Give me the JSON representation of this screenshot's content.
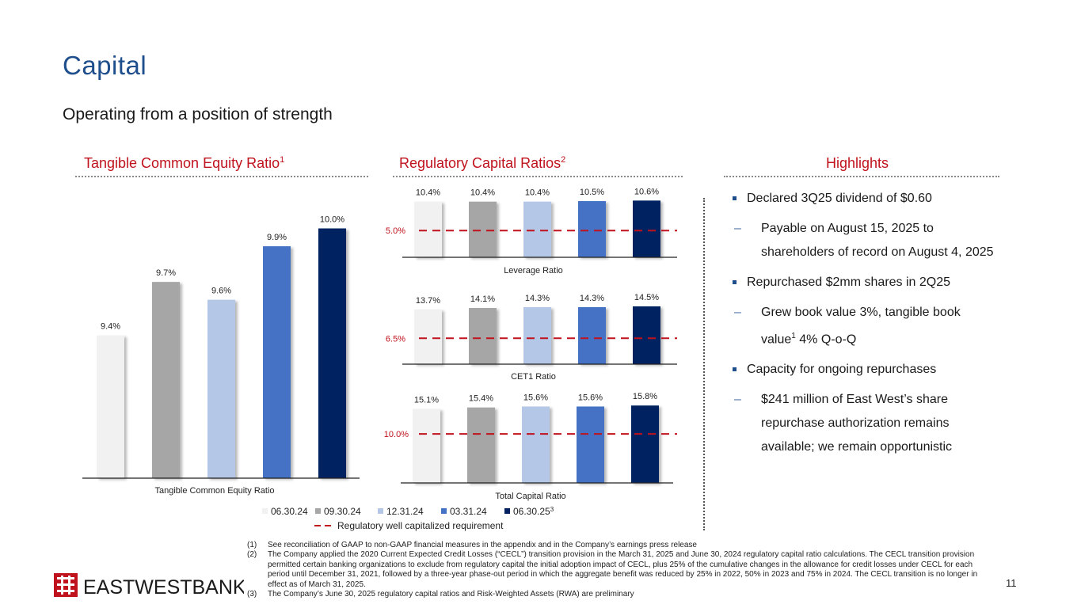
{
  "page": {
    "title": "Capital",
    "subtitle": "Operating from a position of strength",
    "page_number": "11"
  },
  "sections": {
    "tce_title": "Tangible Common Equity Ratio",
    "tce_sup": "1",
    "reg_title": "Regulatory Capital Ratios",
    "reg_sup": "2",
    "highlights_title": "Highlights"
  },
  "colors": {
    "title": "#1f4e8c",
    "section_heading": "#c0121d",
    "requirement_line": "#c0121d",
    "series": [
      "#f1f1f1",
      "#a6a6a6",
      "#b4c7e7",
      "#4472c4",
      "#002060"
    ]
  },
  "chart_data": [
    {
      "type": "bar",
      "xlabel": "Tangible Common Equity Ratio",
      "categories": [
        "06.30.24",
        "09.30.24",
        "12.31.24",
        "03.31.24",
        "06.30.25"
      ],
      "values": [
        9.4,
        9.7,
        9.6,
        9.9,
        10.0
      ],
      "labels": [
        "9.4%",
        "9.7%",
        "9.6%",
        "9.9%",
        "10.0%"
      ],
      "ylim": [
        8.6,
        10.1
      ]
    },
    {
      "type": "bar",
      "xlabel": "Leverage Ratio",
      "categories": [
        "06.30.24",
        "09.30.24",
        "12.31.24",
        "03.31.24",
        "06.30.25"
      ],
      "values": [
        10.4,
        10.4,
        10.4,
        10.5,
        10.6
      ],
      "labels": [
        "10.4%",
        "10.4%",
        "10.4%",
        "10.5%",
        "10.6%"
      ],
      "requirement": 5.0,
      "requirement_label": "5.0%",
      "ylim": [
        0,
        10.8
      ]
    },
    {
      "type": "bar",
      "xlabel": "CET1 Ratio",
      "categories": [
        "06.30.24",
        "09.30.24",
        "12.31.24",
        "03.31.24",
        "06.30.25"
      ],
      "values": [
        13.7,
        14.1,
        14.3,
        14.3,
        14.5
      ],
      "labels": [
        "13.7%",
        "14.1%",
        "14.3%",
        "14.3%",
        "14.5%"
      ],
      "requirement": 6.5,
      "requirement_label": "6.5%",
      "ylim": [
        0,
        14.7
      ]
    },
    {
      "type": "bar",
      "xlabel": "Total Capital Ratio",
      "categories": [
        "06.30.24",
        "09.30.24",
        "12.31.24",
        "03.31.24",
        "06.30.25"
      ],
      "values": [
        15.1,
        15.4,
        15.6,
        15.6,
        15.8
      ],
      "labels": [
        "15.1%",
        "15.4%",
        "15.6%",
        "15.6%",
        "15.8%"
      ],
      "requirement": 10.0,
      "requirement_label": "10.0%",
      "ylim": [
        0,
        16.0
      ]
    }
  ],
  "legend": {
    "items": [
      "06.30.24",
      "09.30.24",
      "12.31.24",
      "03.31.24",
      "06.30.25"
    ],
    "last_sup": "3",
    "requirement_label": "Regulatory well capitalized requirement"
  },
  "highlights": {
    "b1": "Declared 3Q25 dividend of $0.60",
    "b1_sub": "Payable on August 15, 2025 to shareholders of record on August 4, 2025",
    "b2": "Repurchased $2mm shares in 2Q25",
    "b2_sub_a": "Grew book value 3%, tangible book value",
    "b2_sub_sup": "1",
    "b2_sub_b": " 4% Q-o-Q",
    "b3": "Capacity for ongoing repurchases",
    "b3_sub": "$241 million of East West’s share repurchase authorization remains available; we remain opportunistic"
  },
  "footnotes": {
    "n1": "(1)",
    "f1": "See reconciliation of GAAP to non-GAAP financial measures in the appendix and in the Company’s earnings press release",
    "n2": "(2)",
    "f2": "The Company applied the 2020 Current Expected Credit Losses (“CECL”) transition provision in the March 31, 2025 and June 30, 2024 regulatory capital ratio calculations. The CECL transition provision permitted certain banking organizations to exclude from regulatory capital the initial adoption impact of CECL, plus 25% of the cumulative changes in the allowance for credit losses under CECL for each period until December 31, 2021, followed by a three-year phase-out period in which the aggregate benefit was reduced by 25% in 2022, 50% in 2023 and 75% in 2024. The CECL transition is no longer in effect as of March 31, 2025.",
    "n3": "(3)",
    "f3": "The Company’s June 30, 2025 regulatory capital ratios and Risk-Weighted Assets (RWA) are preliminary"
  },
  "logo": {
    "text": "EASTWESTBANK",
    "icon": "east-west-bank-logo-icon"
  }
}
